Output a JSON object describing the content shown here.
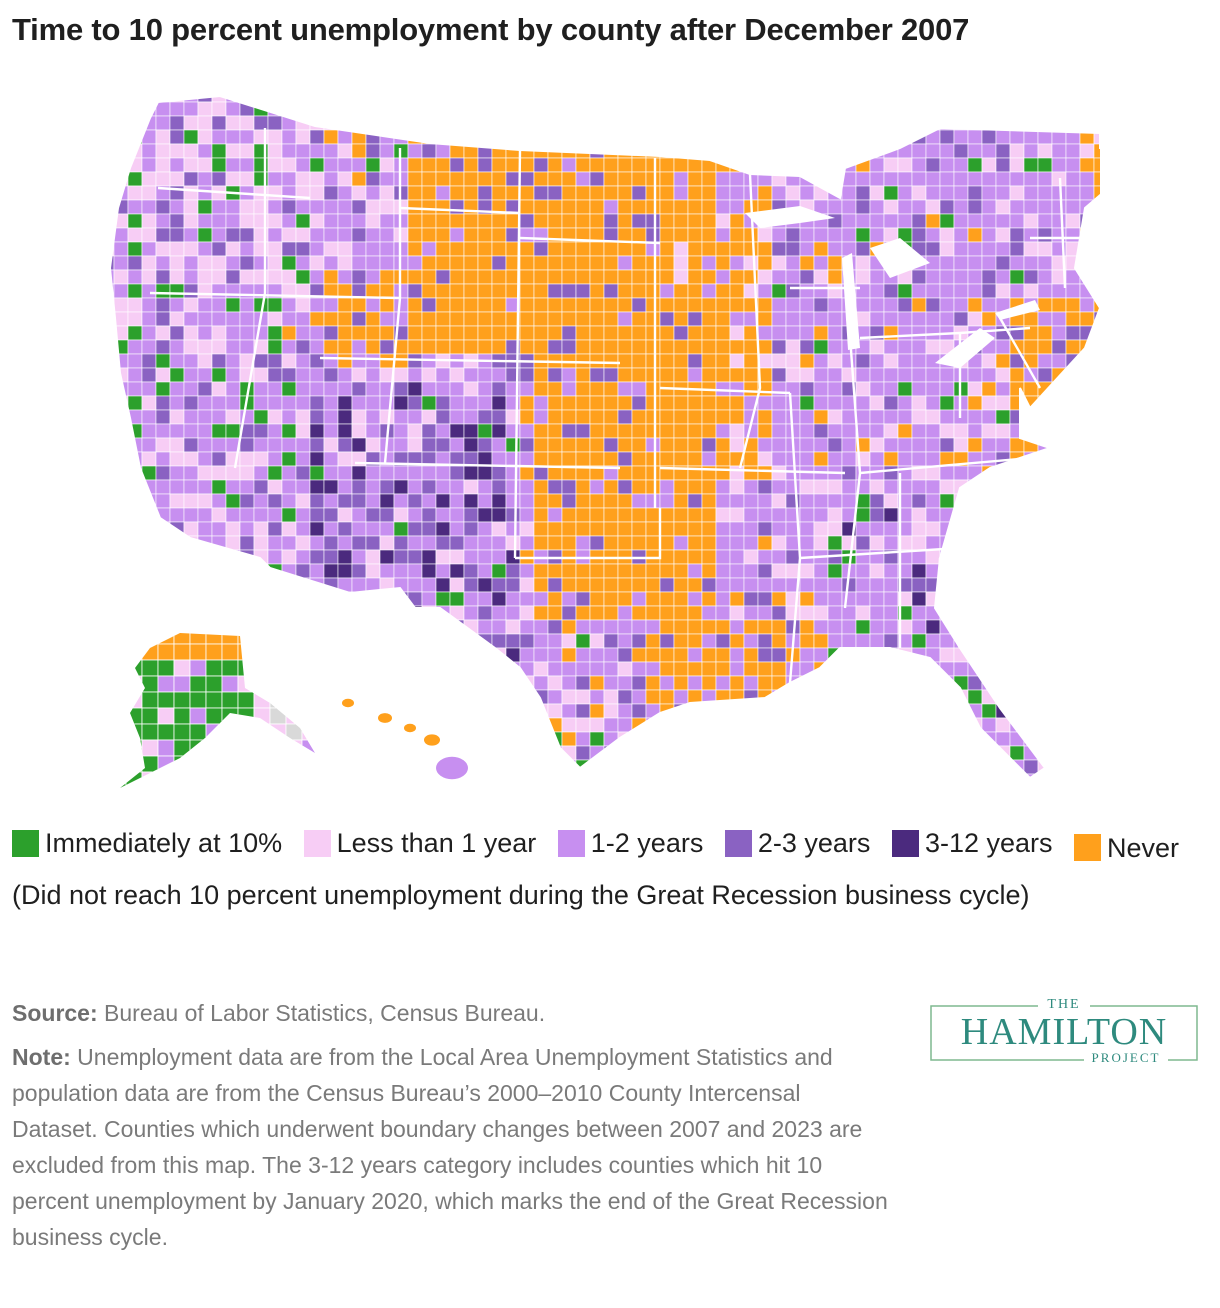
{
  "title": "Time to 10 percent unemployment by county after December 2007",
  "legend": [
    {
      "label": "Immediately at 10%",
      "color": "#2ca02c"
    },
    {
      "label": "Less than 1 year",
      "color": "#f7cdf5"
    },
    {
      "label": "1-2 years",
      "color": "#c78ff0"
    },
    {
      "label": "2-3 years",
      "color": "#8a62c2"
    },
    {
      "label": "3-12 years",
      "color": "#4b2a7e"
    },
    {
      "label": "Never (Did not reach 10 percent unemployment during the Great Recession business cycle)",
      "color": "#ffa01c"
    }
  ],
  "no_data_color": "#d9d9d9",
  "source": {
    "label": "Source:",
    "text": "Bureau of Labor Statistics, Census Bureau."
  },
  "note": {
    "label": "Note:",
    "text": "Unemployment data are from the Local Area Unemployment Statistics and population data are from the Census Bureau’s 2000–2010 County Intercensal Dataset. Counties which underwent boundary changes between 2007 and 2023 are excluded from this map. The 3-12 years category includes counties which hit 10 percent unemployment by January 2020, which marks the end of the Great Recession business cycle."
  },
  "logo": {
    "top": "THE",
    "main": "HAMILTON",
    "bottom": "PROJECT",
    "color": "#2e8a7e"
  }
}
